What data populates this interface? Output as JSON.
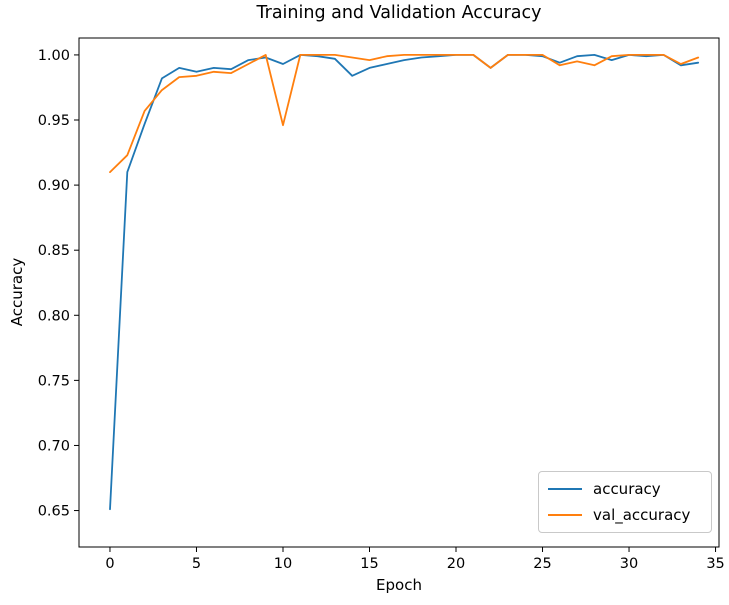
{
  "chart_data": {
    "type": "line",
    "title": "Training and Validation Accuracy",
    "xlabel": "Epoch",
    "ylabel": "Accuracy",
    "grid": false,
    "legend_position": "lower right",
    "xlim": [
      -1.79,
      35.2
    ],
    "ylim": [
      0.622,
      1.013
    ],
    "xticks": {
      "values": [
        0,
        5,
        10,
        15,
        20,
        25,
        30,
        35
      ],
      "labels": [
        "0",
        "5",
        "10",
        "15",
        "20",
        "25",
        "30",
        "35"
      ]
    },
    "yticks": {
      "values": [
        1.0,
        0.95,
        0.9,
        0.85,
        0.8,
        0.75,
        0.7,
        0.65
      ],
      "labels": [
        "1.00",
        "0.95",
        "0.90",
        "0.85",
        "0.80",
        "0.75",
        "0.70",
        "0.65"
      ]
    },
    "x": [
      0,
      1,
      2,
      3,
      4,
      5,
      6,
      7,
      8,
      9,
      10,
      11,
      12,
      13,
      14,
      15,
      16,
      17,
      18,
      19,
      20,
      21,
      22,
      23,
      24,
      25,
      26,
      27,
      28,
      29,
      30,
      31,
      32,
      33,
      34
    ],
    "series": [
      {
        "name": "accuracy",
        "color": "#1f77b4",
        "values": [
          0.651,
          0.91,
          0.947,
          0.982,
          0.99,
          0.987,
          0.99,
          0.989,
          0.996,
          0.998,
          0.993,
          1.0,
          0.999,
          0.997,
          0.984,
          0.99,
          0.993,
          0.996,
          0.998,
          0.999,
          1.0,
          1.0,
          0.99,
          1.0,
          1.0,
          0.999,
          0.994,
          0.999,
          1.0,
          0.996,
          1.0,
          0.999,
          1.0,
          0.992,
          0.994
        ]
      },
      {
        "name": "val_accuracy",
        "color": "#ff7f0e",
        "values": [
          0.91,
          0.923,
          0.957,
          0.973,
          0.983,
          0.984,
          0.987,
          0.986,
          0.993,
          1.0,
          0.946,
          1.0,
          1.0,
          1.0,
          0.998,
          0.996,
          0.999,
          1.0,
          1.0,
          1.0,
          1.0,
          1.0,
          0.99,
          1.0,
          1.0,
          1.0,
          0.992,
          0.995,
          0.992,
          0.999,
          1.0,
          1.0,
          1.0,
          0.993,
          0.998
        ]
      }
    ]
  }
}
